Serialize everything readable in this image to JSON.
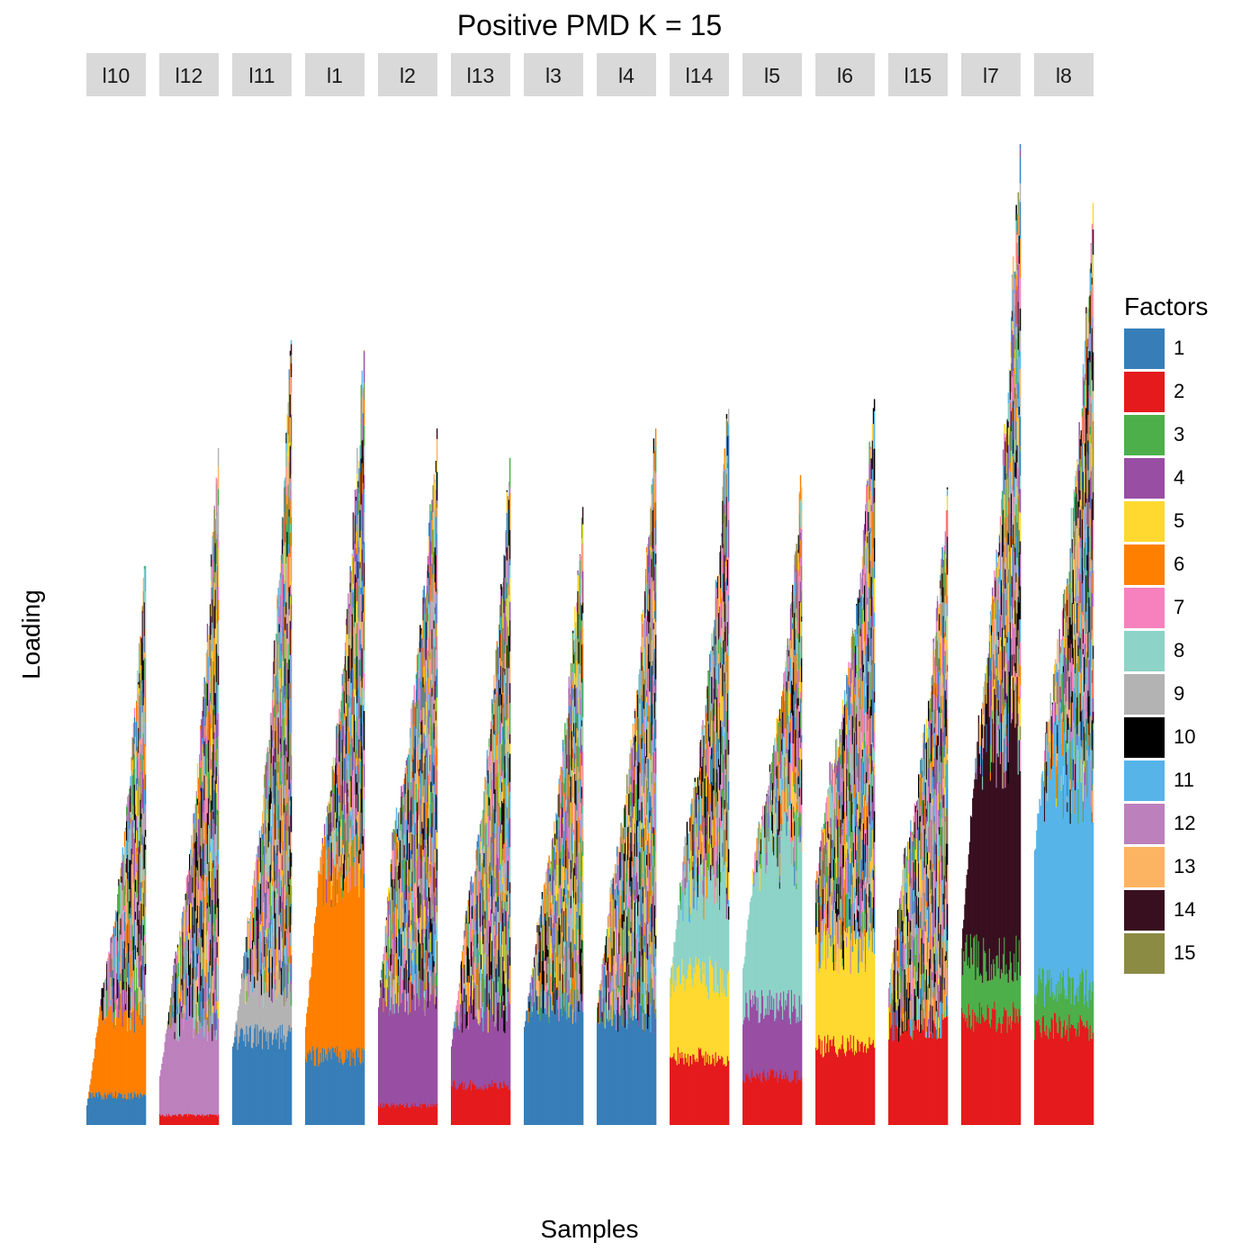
{
  "chart_data": {
    "type": "bar",
    "title": "Positive PMD K = 15",
    "xlabel": "Samples",
    "ylabel": "Loading",
    "legend_title": "Factors",
    "legend_position": "right",
    "grid": false,
    "stacked": true,
    "facets": [
      "l10",
      "l12",
      "l11",
      "l1",
      "l2",
      "l13",
      "l3",
      "l4",
      "l14",
      "l5",
      "l6",
      "l15",
      "l7",
      "l8"
    ],
    "factors": [
      {
        "name": "1",
        "color": "#377EB8"
      },
      {
        "name": "2",
        "color": "#E41A1C"
      },
      {
        "name": "3",
        "color": "#4DAF4A"
      },
      {
        "name": "4",
        "color": "#984EA3"
      },
      {
        "name": "5",
        "color": "#FFD92F"
      },
      {
        "name": "6",
        "color": "#FF7F00"
      },
      {
        "name": "7",
        "color": "#F781BF"
      },
      {
        "name": "8",
        "color": "#8DD3C7"
      },
      {
        "name": "9",
        "color": "#B3B3B3"
      },
      {
        "name": "10",
        "color": "#000000"
      },
      {
        "name": "11",
        "color": "#56B4E9"
      },
      {
        "name": "12",
        "color": "#BC80BD"
      },
      {
        "name": "13",
        "color": "#FDB462"
      },
      {
        "name": "14",
        "color": "#380F1F"
      },
      {
        "name": "15",
        "color": "#8B8B44"
      }
    ],
    "ylim": [
      0,
      1.0
    ],
    "panel_summary": [
      {
        "facet": "l10",
        "bars": 60,
        "min_total": 0.02,
        "knee_total": 0.16,
        "max_total": 0.57,
        "base": [
          {
            "factor": "1",
            "level": 0.03
          },
          {
            "factor": "6",
            "level": 0.11
          }
        ]
      },
      {
        "facet": "l12",
        "bars": 60,
        "min_total": 0.05,
        "knee_total": 0.18,
        "max_total": 0.69,
        "base": [
          {
            "factor": "2",
            "level": 0.01
          },
          {
            "factor": "12",
            "level": 0.1
          }
        ]
      },
      {
        "facet": "l11",
        "bars": 60,
        "min_total": 0.08,
        "knee_total": 0.22,
        "max_total": 0.8,
        "base": [
          {
            "factor": "1",
            "level": 0.09
          },
          {
            "factor": "9",
            "level": 0.14
          }
        ]
      },
      {
        "facet": "l1",
        "bars": 60,
        "min_total": 0.1,
        "knee_total": 0.32,
        "max_total": 0.79,
        "base": [
          {
            "factor": "1",
            "level": 0.07
          },
          {
            "factor": "6",
            "level": 0.26
          }
        ]
      },
      {
        "facet": "l2",
        "bars": 60,
        "min_total": 0.12,
        "knee_total": 0.35,
        "max_total": 0.71,
        "base": [
          {
            "factor": "2",
            "level": 0.02
          },
          {
            "factor": "4",
            "level": 0.13
          }
        ]
      },
      {
        "facet": "l13",
        "bars": 60,
        "min_total": 0.08,
        "knee_total": 0.25,
        "max_total": 0.68,
        "base": [
          {
            "factor": "2",
            "level": 0.04
          },
          {
            "factor": "4",
            "level": 0.11
          }
        ]
      },
      {
        "facet": "l3",
        "bars": 60,
        "min_total": 0.1,
        "knee_total": 0.24,
        "max_total": 0.63,
        "base": [
          {
            "factor": "1",
            "level": 0.12
          }
        ]
      },
      {
        "facet": "l4",
        "bars": 60,
        "min_total": 0.12,
        "knee_total": 0.28,
        "max_total": 0.71,
        "base": [
          {
            "factor": "1",
            "level": 0.11
          }
        ]
      },
      {
        "facet": "l14",
        "bars": 60,
        "min_total": 0.15,
        "knee_total": 0.32,
        "max_total": 0.73,
        "base": [
          {
            "factor": "2",
            "level": 0.07
          },
          {
            "factor": "5",
            "level": 0.15
          },
          {
            "factor": "8",
            "level": 0.24
          }
        ]
      },
      {
        "facet": "l5",
        "bars": 60,
        "min_total": 0.16,
        "knee_total": 0.34,
        "max_total": 0.65,
        "base": [
          {
            "factor": "2",
            "level": 0.05
          },
          {
            "factor": "4",
            "level": 0.12
          },
          {
            "factor": "8",
            "level": 0.28
          }
        ]
      },
      {
        "facet": "l6",
        "bars": 60,
        "min_total": 0.25,
        "knee_total": 0.39,
        "max_total": 0.74,
        "base": [
          {
            "factor": "2",
            "level": 0.08
          },
          {
            "factor": "5",
            "level": 0.18
          }
        ]
      },
      {
        "facet": "l15",
        "bars": 60,
        "min_total": 0.14,
        "knee_total": 0.3,
        "max_total": 0.65,
        "base": [
          {
            "factor": "2",
            "level": 0.1
          }
        ]
      },
      {
        "facet": "l7",
        "bars": 60,
        "min_total": 0.18,
        "knee_total": 0.45,
        "max_total": 1.0,
        "base": [
          {
            "factor": "2",
            "level": 0.11
          },
          {
            "factor": "3",
            "level": 0.17
          },
          {
            "factor": "14",
            "level": 0.4
          }
        ]
      },
      {
        "facet": "l8",
        "bars": 60,
        "min_total": 0.28,
        "knee_total": 0.46,
        "max_total": 0.94,
        "base": [
          {
            "factor": "2",
            "level": 0.1
          },
          {
            "factor": "3",
            "level": 0.14
          },
          {
            "factor": "11",
            "level": 0.36
          }
        ]
      }
    ]
  }
}
